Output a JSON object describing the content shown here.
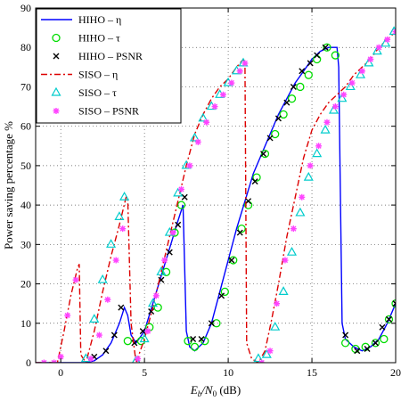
{
  "chart_data": {
    "type": "line",
    "xlabel_main": "E",
    "xlabel_sub1": "b",
    "xlabel_mid": "/N",
    "xlabel_sub2": "0",
    "xlabel_tail": " (dB)",
    "ylabel": "Power saving percentage %",
    "xlim": [
      -1.5,
      20
    ],
    "ylim": [
      0,
      90
    ],
    "xticks": [
      0,
      5,
      10,
      15,
      20
    ],
    "yticks": [
      0,
      10,
      20,
      30,
      40,
      50,
      60,
      70,
      80,
      90
    ],
    "grid": true,
    "legend_position": "top-left",
    "series": [
      {
        "name": "HIHO – η",
        "style": "line",
        "color": "#0000ff",
        "points": [
          [
            -1.5,
            0
          ],
          [
            1.5,
            0
          ],
          [
            2.0,
            0.5
          ],
          [
            2.5,
            2
          ],
          [
            3.0,
            5
          ],
          [
            3.5,
            10
          ],
          [
            3.8,
            14
          ],
          [
            4.0,
            12
          ],
          [
            4.2,
            7
          ],
          [
            4.5,
            5
          ],
          [
            5.0,
            8
          ],
          [
            5.5,
            15
          ],
          [
            6.0,
            22
          ],
          [
            6.5,
            29
          ],
          [
            7.0,
            36
          ],
          [
            7.3,
            40
          ],
          [
            7.5,
            8
          ],
          [
            7.7,
            4
          ],
          [
            8.0,
            3
          ],
          [
            8.5,
            5
          ],
          [
            9.0,
            10
          ],
          [
            9.5,
            18
          ],
          [
            10,
            26
          ],
          [
            10.5,
            34
          ],
          [
            11,
            41
          ],
          [
            11.5,
            48
          ],
          [
            12,
            53
          ],
          [
            12.5,
            58
          ],
          [
            13,
            63
          ],
          [
            13.5,
            67
          ],
          [
            14,
            71
          ],
          [
            14.5,
            74
          ],
          [
            15,
            77
          ],
          [
            15.5,
            79
          ],
          [
            16,
            80
          ],
          [
            16.5,
            80
          ],
          [
            16.6,
            75
          ],
          [
            16.8,
            10
          ],
          [
            17,
            6
          ],
          [
            17.5,
            4
          ],
          [
            18,
            3
          ],
          [
            18.5,
            4
          ],
          [
            19,
            6
          ],
          [
            19.5,
            10
          ],
          [
            20,
            15
          ]
        ]
      },
      {
        "name": "HIHO – τ",
        "style": "marker",
        "marker": "circle",
        "color": "#00dd00",
        "points": [
          [
            4.0,
            5.5
          ],
          [
            4.8,
            5.5
          ],
          [
            5.3,
            9
          ],
          [
            5.8,
            14
          ],
          [
            6.3,
            23
          ],
          [
            6.8,
            33
          ],
          [
            7.2,
            40
          ],
          [
            7.6,
            5.5
          ],
          [
            8.0,
            4
          ],
          [
            8.6,
            5.5
          ],
          [
            9.3,
            10
          ],
          [
            9.8,
            18
          ],
          [
            10.3,
            26
          ],
          [
            10.8,
            34
          ],
          [
            11.2,
            40
          ],
          [
            11.7,
            47
          ],
          [
            12.2,
            53
          ],
          [
            12.8,
            58
          ],
          [
            13.3,
            63
          ],
          [
            13.8,
            67
          ],
          [
            14.3,
            70
          ],
          [
            14.8,
            73
          ],
          [
            15.3,
            77
          ],
          [
            15.9,
            80
          ],
          [
            16.4,
            78
          ],
          [
            17.0,
            5
          ],
          [
            17.6,
            3.5
          ],
          [
            18.2,
            4
          ],
          [
            18.8,
            5
          ],
          [
            19.3,
            6
          ],
          [
            19.6,
            11
          ],
          [
            20.0,
            15
          ]
        ]
      },
      {
        "name": "HIHO – PSNR",
        "style": "marker",
        "marker": "cross",
        "color": "#000000",
        "points": [
          [
            2.0,
            1.5
          ],
          [
            2.7,
            3
          ],
          [
            3.2,
            7
          ],
          [
            3.6,
            14
          ],
          [
            4.4,
            5
          ],
          [
            4.9,
            8
          ],
          [
            5.4,
            13
          ],
          [
            6.0,
            21
          ],
          [
            6.5,
            28
          ],
          [
            7.0,
            35
          ],
          [
            7.4,
            42
          ],
          [
            7.9,
            6
          ],
          [
            8.4,
            6
          ],
          [
            9.0,
            10
          ],
          [
            9.6,
            17
          ],
          [
            10.2,
            26
          ],
          [
            10.7,
            33
          ],
          [
            11.2,
            41
          ],
          [
            11.6,
            46
          ],
          [
            12.1,
            53
          ],
          [
            12.5,
            57
          ],
          [
            13.0,
            62
          ],
          [
            13.5,
            66
          ],
          [
            13.9,
            70
          ],
          [
            14.4,
            74
          ],
          [
            14.9,
            76
          ],
          [
            15.3,
            78
          ],
          [
            15.8,
            80
          ],
          [
            17.0,
            7
          ],
          [
            17.7,
            3
          ],
          [
            18.3,
            3.5
          ],
          [
            18.8,
            5
          ],
          [
            19.2,
            9
          ],
          [
            19.6,
            11
          ],
          [
            20.0,
            15
          ]
        ]
      },
      {
        "name": "SISO – η",
        "style": "dashdot",
        "color": "#dd0000",
        "points": [
          [
            -1.5,
            0
          ],
          [
            -0.2,
            0
          ],
          [
            0.2,
            8
          ],
          [
            0.6,
            17
          ],
          [
            1.0,
            24
          ],
          [
            1.1,
            25
          ],
          [
            1.2,
            2
          ],
          [
            1.5,
            0
          ],
          [
            2.0,
            8
          ],
          [
            2.5,
            18
          ],
          [
            3.0,
            27
          ],
          [
            3.5,
            35
          ],
          [
            3.9,
            42
          ],
          [
            4.0,
            42
          ],
          [
            4.2,
            10
          ],
          [
            4.5,
            0
          ],
          [
            5.0,
            6
          ],
          [
            5.5,
            14
          ],
          [
            6.0,
            23
          ],
          [
            6.5,
            32
          ],
          [
            7.0,
            41
          ],
          [
            7.5,
            50
          ],
          [
            8.0,
            58
          ],
          [
            8.5,
            63
          ],
          [
            9.0,
            67
          ],
          [
            9.5,
            70
          ],
          [
            10,
            72
          ],
          [
            10.5,
            75
          ],
          [
            10.9,
            77
          ],
          [
            11.0,
            76
          ],
          [
            11.1,
            5
          ],
          [
            11.4,
            1
          ],
          [
            11.8,
            0
          ],
          [
            12.2,
            3
          ],
          [
            12.6,
            11
          ],
          [
            13.0,
            20
          ],
          [
            13.5,
            32
          ],
          [
            14.0,
            42
          ],
          [
            14.5,
            52
          ],
          [
            15.0,
            59
          ],
          [
            15.5,
            63
          ],
          [
            16.0,
            66
          ],
          [
            16.5,
            68
          ],
          [
            17.0,
            70
          ],
          [
            17.5,
            73
          ],
          [
            18.0,
            75
          ],
          [
            18.5,
            77
          ],
          [
            19.0,
            80
          ],
          [
            19.5,
            82
          ],
          [
            20.0,
            84
          ]
        ]
      },
      {
        "name": "SISO – τ",
        "style": "marker",
        "marker": "triangle",
        "color": "#00cccc",
        "points": [
          [
            1.5,
            1
          ],
          [
            2.0,
            11
          ],
          [
            2.5,
            21
          ],
          [
            3.0,
            30
          ],
          [
            3.5,
            37
          ],
          [
            3.8,
            42
          ],
          [
            4.5,
            0.5
          ],
          [
            5.0,
            6
          ],
          [
            5.5,
            15
          ],
          [
            6.0,
            23
          ],
          [
            6.5,
            33
          ],
          [
            7.0,
            43
          ],
          [
            7.5,
            50
          ],
          [
            8.0,
            57
          ],
          [
            8.5,
            62
          ],
          [
            9.0,
            65
          ],
          [
            9.5,
            68
          ],
          [
            10,
            71
          ],
          [
            10.5,
            74
          ],
          [
            10.9,
            76
          ],
          [
            11.8,
            1
          ],
          [
            12.3,
            2
          ],
          [
            12.8,
            9
          ],
          [
            13.3,
            18
          ],
          [
            13.8,
            28
          ],
          [
            14.3,
            38
          ],
          [
            14.8,
            47
          ],
          [
            15.3,
            53
          ],
          [
            15.8,
            59
          ],
          [
            16.3,
            64
          ],
          [
            16.8,
            67
          ],
          [
            17.3,
            70
          ],
          [
            17.9,
            73
          ],
          [
            18.4,
            76
          ],
          [
            18.9,
            79
          ],
          [
            19.4,
            81
          ],
          [
            19.9,
            84
          ]
        ]
      },
      {
        "name": "SISO – PSNR",
        "style": "marker",
        "marker": "asterisk",
        "color": "#ff44ff",
        "points": [
          [
            -1.0,
            0
          ],
          [
            -0.4,
            0
          ],
          [
            0.0,
            1.5
          ],
          [
            0.4,
            12
          ],
          [
            0.9,
            21
          ],
          [
            1.8,
            1
          ],
          [
            2.3,
            7
          ],
          [
            2.8,
            16
          ],
          [
            3.3,
            26
          ],
          [
            3.7,
            34
          ],
          [
            4.6,
            1
          ],
          [
            5.2,
            8
          ],
          [
            5.7,
            17
          ],
          [
            6.2,
            26
          ],
          [
            6.7,
            33
          ],
          [
            7.2,
            44
          ],
          [
            7.7,
            50
          ],
          [
            8.2,
            56
          ],
          [
            8.7,
            61
          ],
          [
            9.2,
            65
          ],
          [
            9.7,
            68
          ],
          [
            10.2,
            71
          ],
          [
            10.7,
            74
          ],
          [
            11.0,
            76
          ],
          [
            12.0,
            0
          ],
          [
            12.5,
            3
          ],
          [
            12.9,
            15
          ],
          [
            13.4,
            26
          ],
          [
            13.9,
            34
          ],
          [
            14.4,
            42
          ],
          [
            14.9,
            50
          ],
          [
            15.4,
            55
          ],
          [
            15.9,
            61
          ],
          [
            16.4,
            65
          ],
          [
            16.9,
            68
          ],
          [
            17.4,
            71
          ],
          [
            18.0,
            74
          ],
          [
            18.5,
            77
          ],
          [
            19.0,
            80
          ],
          [
            19.5,
            82
          ],
          [
            20.0,
            84
          ]
        ]
      }
    ]
  }
}
